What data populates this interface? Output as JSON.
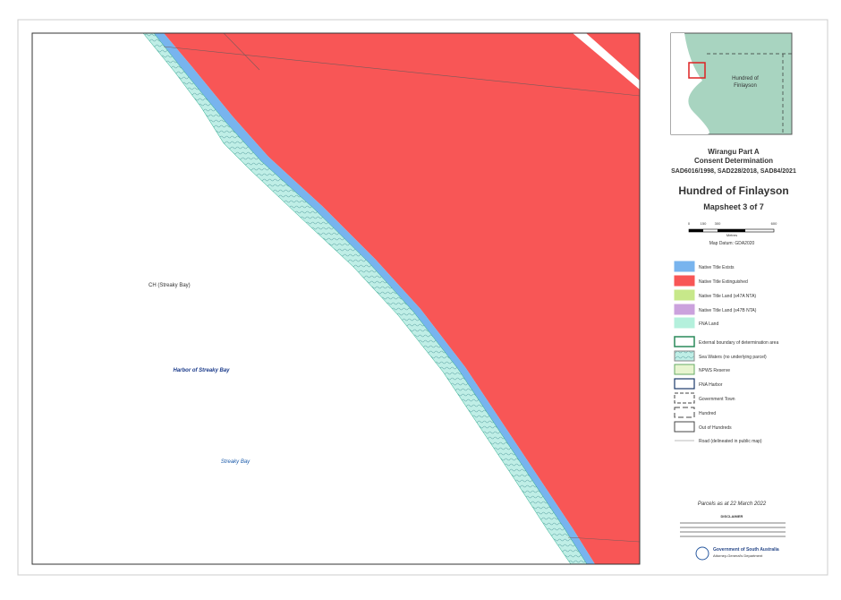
{
  "map": {
    "labels": [
      "CH (Streaky Bay)",
      "Harbor of Streaky Bay",
      "Streaky Bay"
    ]
  },
  "inset": {
    "label_line1": "Hundred of",
    "label_line2": "Finlayson"
  },
  "header": {
    "title_line1": "Wirangu Part A",
    "title_line2": "Consent Determination",
    "case_numbers": "SAD6016/1998, SAD228/2018, SAD84/2021",
    "hundred": "Hundred of Finlayson",
    "mapsheet": "Mapsheet 3 of 7"
  },
  "scale": {
    "ticks": [
      "0",
      "150",
      "300",
      "600"
    ],
    "unit": "Metres",
    "datum": "Map Datum: GDA2020"
  },
  "legend": {
    "items": [
      "Native Title Exists",
      "Native Title Extinguished",
      "Native Title Land (s47A NTA)",
      "Native Title Land (s47B NTA)",
      "FNA Land",
      "External boundary of determination area",
      "Sea Waters (no underlying parcel)",
      "NPWS Reserve",
      "FNA Harbor",
      "Government Town",
      "Hundred",
      "Out of Hundreds",
      "Road (delineated in public map)"
    ]
  },
  "footer": {
    "parcels": "Parcels as at 22 March 2022",
    "disclaimer": "DISCLAIMER",
    "government": "Government of South Australia",
    "department": "Attorney-General's Department"
  }
}
